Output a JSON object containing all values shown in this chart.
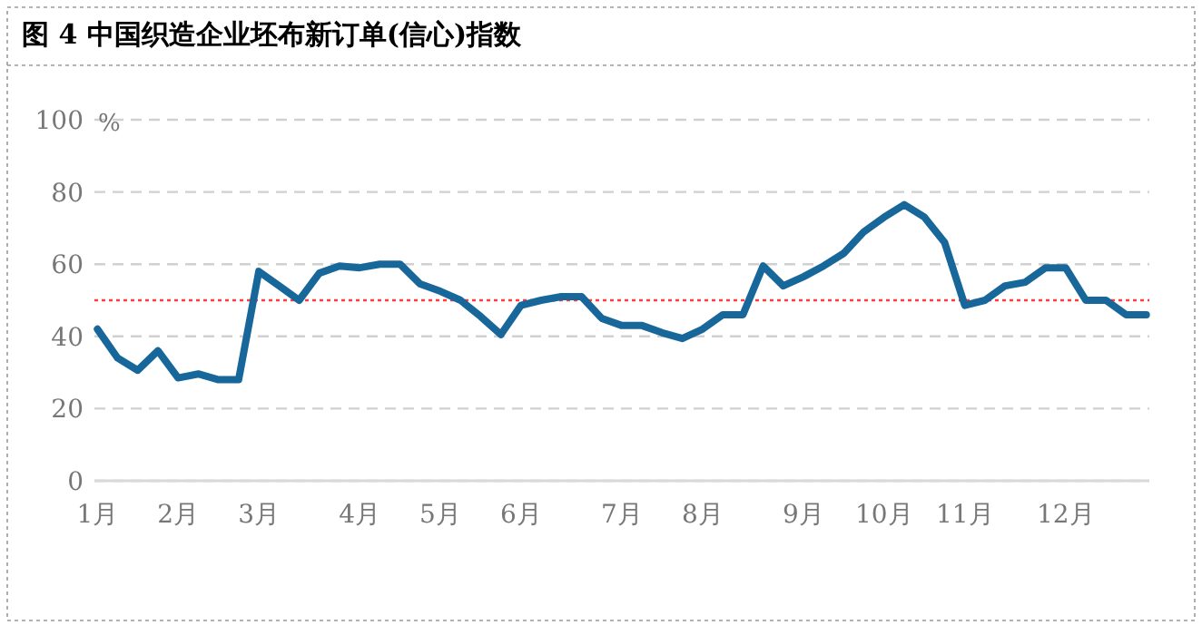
{
  "chart_data": {
    "type": "line",
    "title": "图 4  中国织造企业坯布新订单(信心)指数",
    "ylabel": "%",
    "categories": [
      "1月",
      null,
      null,
      null,
      "2月",
      null,
      null,
      null,
      "3月",
      null,
      null,
      null,
      null,
      "4月",
      null,
      null,
      null,
      "5月",
      null,
      null,
      null,
      "6月",
      null,
      null,
      null,
      null,
      "7月",
      null,
      null,
      null,
      "8月",
      null,
      null,
      null,
      null,
      "9月",
      null,
      null,
      null,
      "10月",
      null,
      null,
      null,
      "11月",
      null,
      null,
      null,
      null,
      "12月",
      null,
      null,
      null,
      null
    ],
    "series": [
      {
        "color": "#17679a",
        "values": [
          42,
          34,
          30.6,
          36,
          28.5,
          29.6,
          28,
          28,
          58,
          54,
          50,
          57.5,
          59.5,
          59,
          60,
          60,
          54.5,
          52.5,
          50,
          45.5,
          40.5,
          48.6,
          50,
          51,
          51,
          45,
          43,
          43,
          41,
          39.4,
          42,
          46,
          46,
          59.5,
          54,
          56.5,
          59.5,
          63,
          69,
          73,
          76.5,
          73,
          66,
          48.6,
          50,
          54,
          55,
          59,
          59,
          50,
          50,
          46,
          46
        ]
      }
    ],
    "ylim": [
      0,
      100
    ],
    "yticks": [
      0,
      20,
      40,
      60,
      80,
      100
    ],
    "grid": "y",
    "ref_lines": [
      {
        "axis": "y",
        "value": 50,
        "color": "#ff3b3b",
        "line_style": "dotted"
      }
    ]
  }
}
